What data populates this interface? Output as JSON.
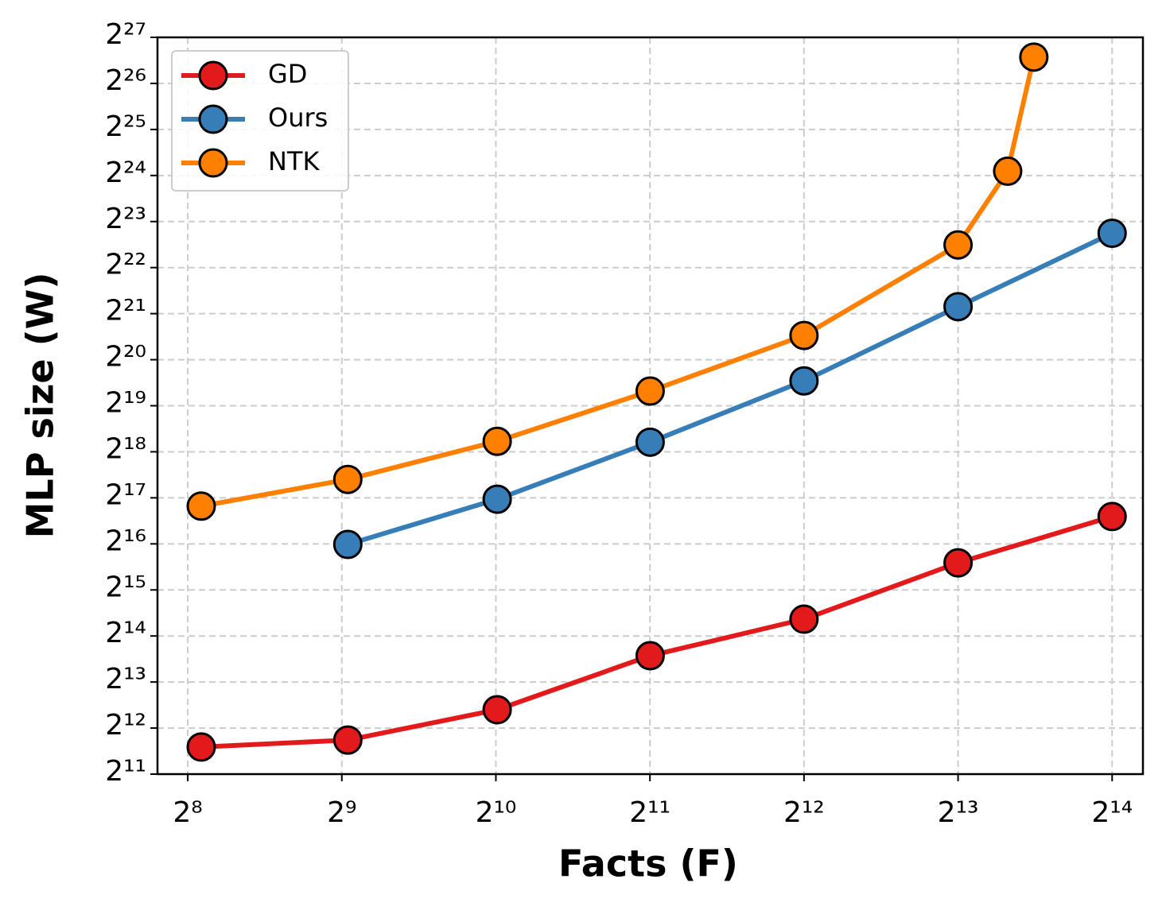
{
  "chart_data": {
    "type": "line",
    "xlabel": "Facts (F)",
    "ylabel": "MLP size (W)",
    "log_x": true,
    "log_y": true,
    "log_base": 2,
    "grid": true,
    "legend": "upper left",
    "xlim": [
      223.4,
      18820
    ],
    "ylim": [
      2048,
      134217728
    ],
    "xticks": [
      {
        "value": 256,
        "label": "2⁸"
      },
      {
        "value": 512,
        "label": "2⁹"
      },
      {
        "value": 1024,
        "label": "2¹⁰"
      },
      {
        "value": 2048,
        "label": "2¹¹"
      },
      {
        "value": 4096,
        "label": "2¹²"
      },
      {
        "value": 8192,
        "label": "2¹³"
      },
      {
        "value": 16384,
        "label": "2¹⁴"
      }
    ],
    "yticks": [
      {
        "value": 2048,
        "label": "2¹¹"
      },
      {
        "value": 4096,
        "label": "2¹²"
      },
      {
        "value": 8192,
        "label": "2¹³"
      },
      {
        "value": 16384,
        "label": "2¹⁴"
      },
      {
        "value": 32768,
        "label": "2¹⁵"
      },
      {
        "value": 65536,
        "label": "2¹⁶"
      },
      {
        "value": 131072,
        "label": "2¹⁷"
      },
      {
        "value": 262144,
        "label": "2¹⁸"
      },
      {
        "value": 524288,
        "label": "2¹⁹"
      },
      {
        "value": 1048576,
        "label": "2²⁰"
      },
      {
        "value": 2097152,
        "label": "2²¹"
      },
      {
        "value": 4194304,
        "label": "2²²"
      },
      {
        "value": 8388608,
        "label": "2²³"
      },
      {
        "value": 16777216,
        "label": "2²⁴"
      },
      {
        "value": 33554432,
        "label": "2²⁵"
      },
      {
        "value": 67108864,
        "label": "2²⁶"
      },
      {
        "value": 134217728,
        "label": "2²⁷"
      }
    ],
    "series": [
      {
        "name": "GD",
        "color": "#e31a1c",
        "x": [
          272,
          526,
          1030,
          2050,
          4096,
          8192,
          16384
        ],
        "values": [
          3080,
          3420,
          5400,
          12170,
          21100,
          49300,
          98900
        ]
      },
      {
        "name": "Ours",
        "color": "#377eb8",
        "x": [
          526,
          1030,
          2050,
          4096,
          8192,
          16384
        ],
        "values": [
          65000,
          128400,
          303000,
          762000,
          2330000,
          7030000
        ]
      },
      {
        "name": "NTK",
        "color": "#ff7f00",
        "x": [
          272,
          526,
          1030,
          2050,
          4096,
          8192,
          10240,
          11520
        ],
        "values": [
          115700,
          172900,
          307000,
          654000,
          1510000,
          5900000,
          17900000,
          99700000
        ]
      }
    ]
  }
}
